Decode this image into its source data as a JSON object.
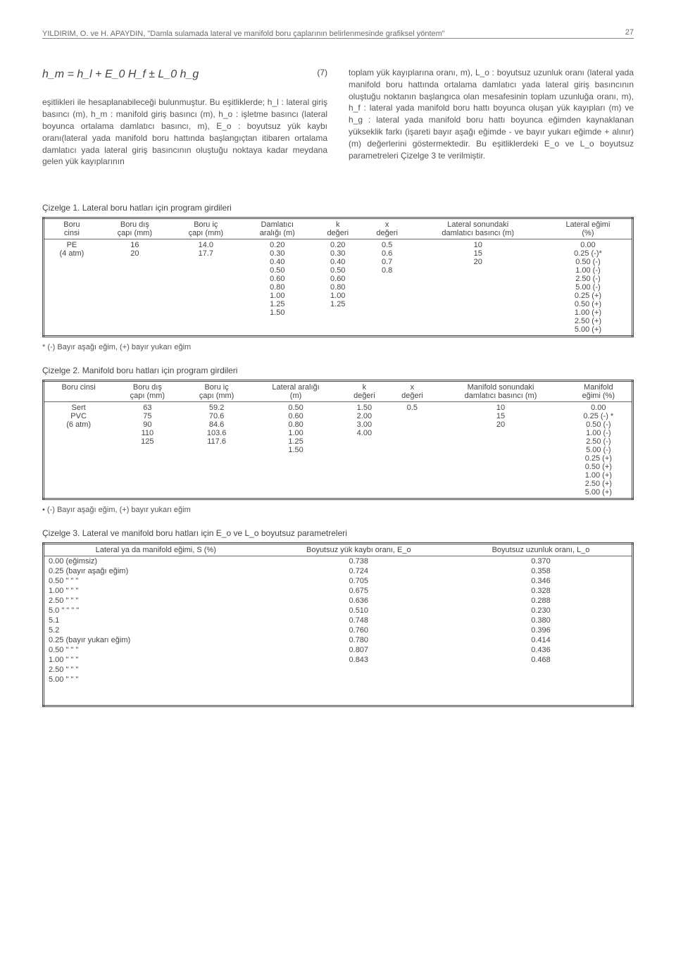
{
  "header": {
    "citation": "YILDIRIM, O. ve H. APAYDIN, \"Damla sulamada lateral ve manifold boru çaplarının belirlenmesinde grafiksel yöntem\"",
    "page": "27"
  },
  "formula": {
    "expr": "h_m = h_l + E_0 H_f ± L_0 h_g",
    "num": "(7)"
  },
  "para": {
    "left": "eşitlikleri ile hesaplanabileceği bulunmuştur. Bu eşitliklerde; h_l : lateral giriş basıncı (m), h_m : manifold giriş basıncı (m), h_o : işletme basıncı (lateral boyunca ortalama damlatıcı basıncı, m), E_o : boyutsuz yük kaybı oranı(lateral yada manifold boru hattında başlangıçtan itibaren ortalama damlatıcı yada lateral giriş basıncının oluştuğu noktaya kadar meydana gelen yük kayıplarının",
    "right": "toplam yük kayıplarına oranı, m), L_o : boyutsuz uzunluk oranı (lateral yada manifold boru hattında ortalama damlatıcı yada lateral giriş basıncının oluştuğu noktanın başlangıca olan mesafesinin toplam uzunluğa oranı, m), h_f : lateral yada manifold boru hattı boyunca oluşan yük kayıpları (m) ve h_g : lateral yada manifold boru hattı boyunca eğimden kaynaklanan yükseklik farkı (işareti bayır aşağı eğimde - ve bayır yukarı eğimde + alınır)(m) değerlerini göstermektedir. Bu eşitliklerdeki E_o ve L_o boyutsuz parametreleri Çizelge 3 te verilmiştir."
  },
  "table1": {
    "caption": "Çizelge 1. Lateral boru hatları için program girdileri",
    "headers": [
      "Boru\ncinsi",
      "Boru dış\nçapı (mm)",
      "Boru iç\nçapı (mm)",
      "Damlatıcı\naralığı  (m)",
      "k\ndeğeri",
      "x\ndeğeri",
      "Lateral sonundaki\ndamlatıcı basıncı (m)",
      "Lateral eğimi\n(%)"
    ],
    "col0": "PE\n(4 atm)",
    "col1": "16\n20",
    "col2": "14.0\n17.7",
    "col3": "0.20\n0.30\n0.40\n0.50\n0.60\n0.80\n1.00\n1.25\n1.50",
    "col4": "0.20\n0.30\n0.40\n0.50\n0.60\n0.80\n1.00\n1.25",
    "col5": "0.5\n0.6\n0.7\n0.8",
    "col6": "10\n15\n20",
    "col7": "0.00\n0.25 (-)*\n0.50 (-)\n1.00 (-)\n2.50 (-)\n5.00 (-)\n0.25 (+)\n0.50 (+)\n1.00 (+)\n2.50 (+)\n5.00 (+)",
    "footnote": "* (-) Bayır aşağı eğim, (+) bayır yukarı eğim"
  },
  "table2": {
    "caption": "Çizelge 2. Manifold boru hatları için program girdileri",
    "headers": [
      "Boru cinsi",
      "Boru dış\nçapı (mm)",
      "Boru iç\nçapı (mm)",
      "Lateral aralığı\n(m)",
      "k\ndeğeri",
      "x\ndeğeri",
      "Manifold sonundaki\ndamlatıcı basıncı (m)",
      "Manifold\neğimi (%)"
    ],
    "col0": "Sert\nPVC\n(6 atm)",
    "col1": "63\n75\n90\n110\n125",
    "col2": "59.2\n70.6\n84.6\n103.6\n117.6",
    "col3": "0.50\n0.60\n0.80\n1.00\n1.25\n1.50",
    "col4": "1.50\n2.00\n3.00\n4.00",
    "col5": "0.5",
    "col6": "10\n15\n20",
    "col7": "0.00\n0.25 (-) *\n0.50 (-)\n1.00 (-)\n2.50 (-)\n5.00 (-)\n0.25 (+)\n0.50 (+)\n1.00 (+)\n2.50 (+)\n5.00 (+)",
    "footnote": "•    (-) Bayır aşağı eğim, (+) bayır yukarı eğim"
  },
  "table3": {
    "caption": "Çizelge 3. Lateral ve manifold boru hatları için E_o ve L_o boyutsuz parametreleri",
    "headers": [
      "Lateral ya da manifold eğimi, S (%)",
      "Boyutsuz yük kaybı oranı, E_o",
      "Boyutsuz uzunluk oranı, L_o"
    ],
    "rows": [
      [
        "0.00 (eğimsiz)",
        "0.738",
        "0.370"
      ],
      [
        "0.25 (bayır aşağı eğim)",
        "0.724",
        "0.358"
      ],
      [
        "0.50    \"      \"       \"",
        "0.705",
        "0.346"
      ],
      [
        "1.00    \"      \"       \"",
        "0.675",
        "0.328"
      ],
      [
        "2.50    \"      \"       \"",
        "0.636",
        "0.288"
      ],
      [
        "5.0 \"    \"   \"  \"",
        "0.510",
        "0.230"
      ],
      [
        "5.1",
        "0.748",
        "0.380"
      ],
      [
        "5.2",
        "0.760",
        "0.396"
      ],
      [
        "0.25 (bayır yukarı eğim)",
        "0.780",
        "0.414"
      ],
      [
        "0.50     \"       \"        \"",
        "0.807",
        "0.436"
      ],
      [
        "1.00     \"       \"        \"",
        "0.843",
        "0.468"
      ],
      [
        "2.50     \"       \"        \"",
        "",
        ""
      ],
      [
        "5.00     \"       \"        \"",
        "",
        ""
      ]
    ]
  }
}
